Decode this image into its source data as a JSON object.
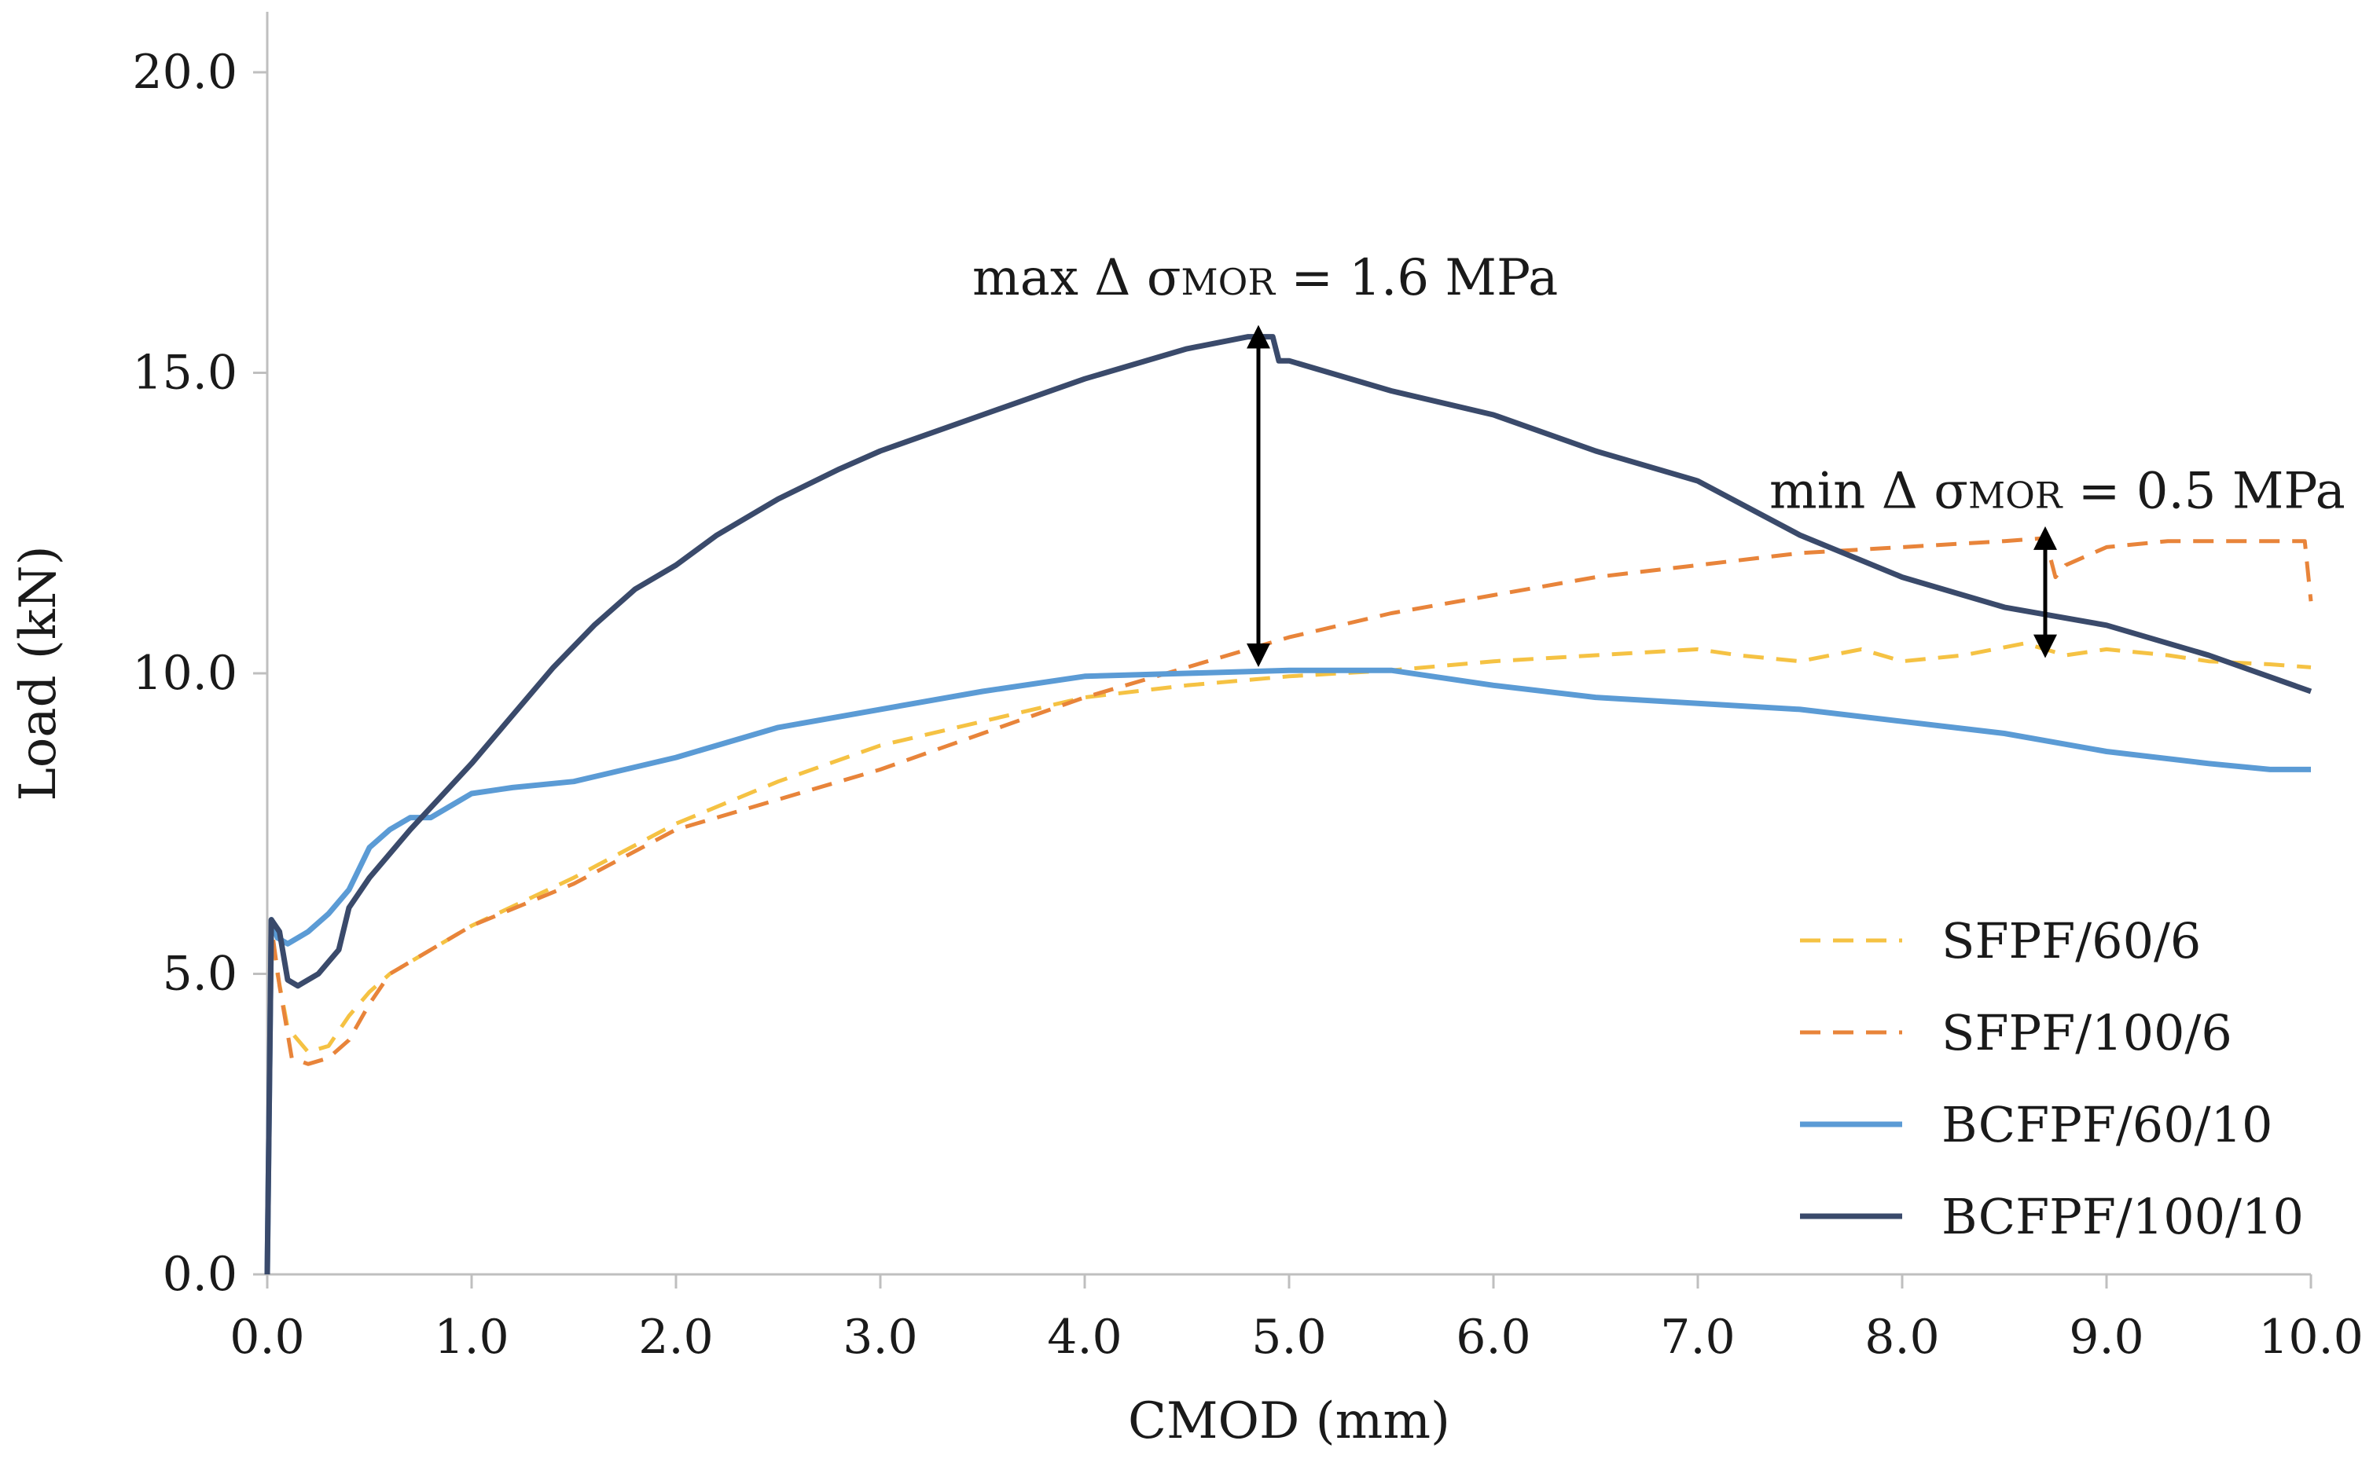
{
  "chart_data": {
    "type": "line",
    "title": "",
    "xlabel": "CMOD (mm)",
    "ylabel": "Load (kN)",
    "xlim": [
      0,
      10
    ],
    "ylim": [
      0,
      20
    ],
    "x_ticks": [
      "0.0",
      "1.0",
      "2.0",
      "3.0",
      "4.0",
      "5.0",
      "6.0",
      "7.0",
      "8.0",
      "9.0",
      "10.0"
    ],
    "y_ticks": [
      "0.0",
      "5.0",
      "10.0",
      "15.0",
      "20.0"
    ],
    "grid": false,
    "legend_position": "bottom-right",
    "series": [
      {
        "name": "SFPF/60/6",
        "color": "#f5c243",
        "dash": "dashed",
        "points": [
          [
            0,
            0
          ],
          [
            0.02,
            5.8
          ],
          [
            0.05,
            5.0
          ],
          [
            0.1,
            4.1
          ],
          [
            0.2,
            3.7
          ],
          [
            0.3,
            3.8
          ],
          [
            0.4,
            4.3
          ],
          [
            0.5,
            4.7
          ],
          [
            0.6,
            5.0
          ],
          [
            0.8,
            5.4
          ],
          [
            1.0,
            5.8
          ],
          [
            1.5,
            6.6
          ],
          [
            2.0,
            7.5
          ],
          [
            2.5,
            8.2
          ],
          [
            3.0,
            8.8
          ],
          [
            3.5,
            9.2
          ],
          [
            4.0,
            9.6
          ],
          [
            4.5,
            9.8
          ],
          [
            5.0,
            9.95
          ],
          [
            5.5,
            10.05
          ],
          [
            6.0,
            10.2
          ],
          [
            6.5,
            10.3
          ],
          [
            7.0,
            10.4
          ],
          [
            7.2,
            10.3
          ],
          [
            7.5,
            10.2
          ],
          [
            7.8,
            10.4
          ],
          [
            8.0,
            10.2
          ],
          [
            8.3,
            10.3
          ],
          [
            8.6,
            10.5
          ],
          [
            8.8,
            10.3
          ],
          [
            9.0,
            10.4
          ],
          [
            9.3,
            10.3
          ],
          [
            9.5,
            10.2
          ],
          [
            9.8,
            10.15
          ],
          [
            10.0,
            10.1
          ]
        ]
      },
      {
        "name": "SFPF/100/6",
        "color": "#e8843a",
        "dash": "dashed",
        "points": [
          [
            0,
            0
          ],
          [
            0.02,
            5.8
          ],
          [
            0.06,
            4.8
          ],
          [
            0.12,
            3.6
          ],
          [
            0.2,
            3.5
          ],
          [
            0.3,
            3.6
          ],
          [
            0.4,
            3.9
          ],
          [
            0.5,
            4.5
          ],
          [
            0.6,
            5.0
          ],
          [
            0.8,
            5.4
          ],
          [
            1.0,
            5.8
          ],
          [
            1.5,
            6.5
          ],
          [
            2.0,
            7.4
          ],
          [
            2.5,
            7.9
          ],
          [
            3.0,
            8.4
          ],
          [
            3.5,
            9.0
          ],
          [
            4.0,
            9.6
          ],
          [
            4.5,
            10.1
          ],
          [
            5.0,
            10.6
          ],
          [
            5.5,
            11.0
          ],
          [
            6.0,
            11.3
          ],
          [
            6.5,
            11.6
          ],
          [
            7.0,
            11.8
          ],
          [
            7.5,
            12.0
          ],
          [
            8.0,
            12.1
          ],
          [
            8.5,
            12.2
          ],
          [
            8.7,
            12.25
          ],
          [
            8.75,
            11.6
          ],
          [
            8.8,
            11.8
          ],
          [
            9.0,
            12.1
          ],
          [
            9.3,
            12.2
          ],
          [
            9.6,
            12.2
          ],
          [
            9.97,
            12.2
          ],
          [
            10.0,
            11.2
          ]
        ]
      },
      {
        "name": "BCFPF/60/10",
        "color": "#5b9bd5",
        "dash": "solid",
        "points": [
          [
            0,
            0
          ],
          [
            0.02,
            5.9
          ],
          [
            0.05,
            5.6
          ],
          [
            0.1,
            5.5
          ],
          [
            0.2,
            5.7
          ],
          [
            0.3,
            6.0
          ],
          [
            0.4,
            6.4
          ],
          [
            0.5,
            7.1
          ],
          [
            0.6,
            7.4
          ],
          [
            0.7,
            7.6
          ],
          [
            0.8,
            7.6
          ],
          [
            0.9,
            7.8
          ],
          [
            1.0,
            8.0
          ],
          [
            1.2,
            8.1
          ],
          [
            1.5,
            8.2
          ],
          [
            2.0,
            8.6
          ],
          [
            2.5,
            9.1
          ],
          [
            3.0,
            9.4
          ],
          [
            3.5,
            9.7
          ],
          [
            4.0,
            9.95
          ],
          [
            4.5,
            10.0
          ],
          [
            5.0,
            10.05
          ],
          [
            5.5,
            10.05
          ],
          [
            6.0,
            9.8
          ],
          [
            6.5,
            9.6
          ],
          [
            7.0,
            9.5
          ],
          [
            7.5,
            9.4
          ],
          [
            8.0,
            9.2
          ],
          [
            8.5,
            9.0
          ],
          [
            9.0,
            8.7
          ],
          [
            9.5,
            8.5
          ],
          [
            9.8,
            8.4
          ],
          [
            10.0,
            8.4
          ]
        ]
      },
      {
        "name": "BCFPF/100/10",
        "color": "#3a4a6b",
        "dash": "solid",
        "points": [
          [
            0,
            0
          ],
          [
            0.02,
            5.9
          ],
          [
            0.06,
            5.7
          ],
          [
            0.1,
            4.9
          ],
          [
            0.15,
            4.8
          ],
          [
            0.25,
            5.0
          ],
          [
            0.35,
            5.4
          ],
          [
            0.4,
            6.1
          ],
          [
            0.5,
            6.6
          ],
          [
            0.7,
            7.4
          ],
          [
            1.0,
            8.5
          ],
          [
            1.2,
            9.3
          ],
          [
            1.4,
            10.1
          ],
          [
            1.6,
            10.8
          ],
          [
            1.8,
            11.4
          ],
          [
            2.0,
            11.8
          ],
          [
            2.2,
            12.3
          ],
          [
            2.5,
            12.9
          ],
          [
            2.8,
            13.4
          ],
          [
            3.0,
            13.7
          ],
          [
            3.5,
            14.3
          ],
          [
            4.0,
            14.9
          ],
          [
            4.5,
            15.4
          ],
          [
            4.8,
            15.6
          ],
          [
            4.92,
            15.6
          ],
          [
            4.95,
            15.2
          ],
          [
            5.0,
            15.2
          ],
          [
            5.5,
            14.7
          ],
          [
            6.0,
            14.3
          ],
          [
            6.5,
            13.7
          ],
          [
            7.0,
            13.2
          ],
          [
            7.5,
            12.3
          ],
          [
            8.0,
            11.6
          ],
          [
            8.5,
            11.1
          ],
          [
            9.0,
            10.8
          ],
          [
            9.5,
            10.3
          ],
          [
            10.0,
            9.7
          ]
        ]
      }
    ],
    "annotations": [
      {
        "text_main": "max Δ σ",
        "subscript": "MOR",
        "text_tail": " = 1.6 MPa",
        "arrow_x": 4.85,
        "arrow_y_from": 10.3,
        "arrow_y_to": 15.6,
        "anchor_x": 3.45,
        "anchor_y": 16.3
      },
      {
        "text_main": "min Δ σ",
        "subscript": "MOR",
        "text_tail": " = 0.5 MPa",
        "arrow_x": 8.7,
        "arrow_y_from": 10.45,
        "arrow_y_to": 12.25,
        "anchor_x": 7.35,
        "anchor_y": 12.75
      }
    ]
  }
}
